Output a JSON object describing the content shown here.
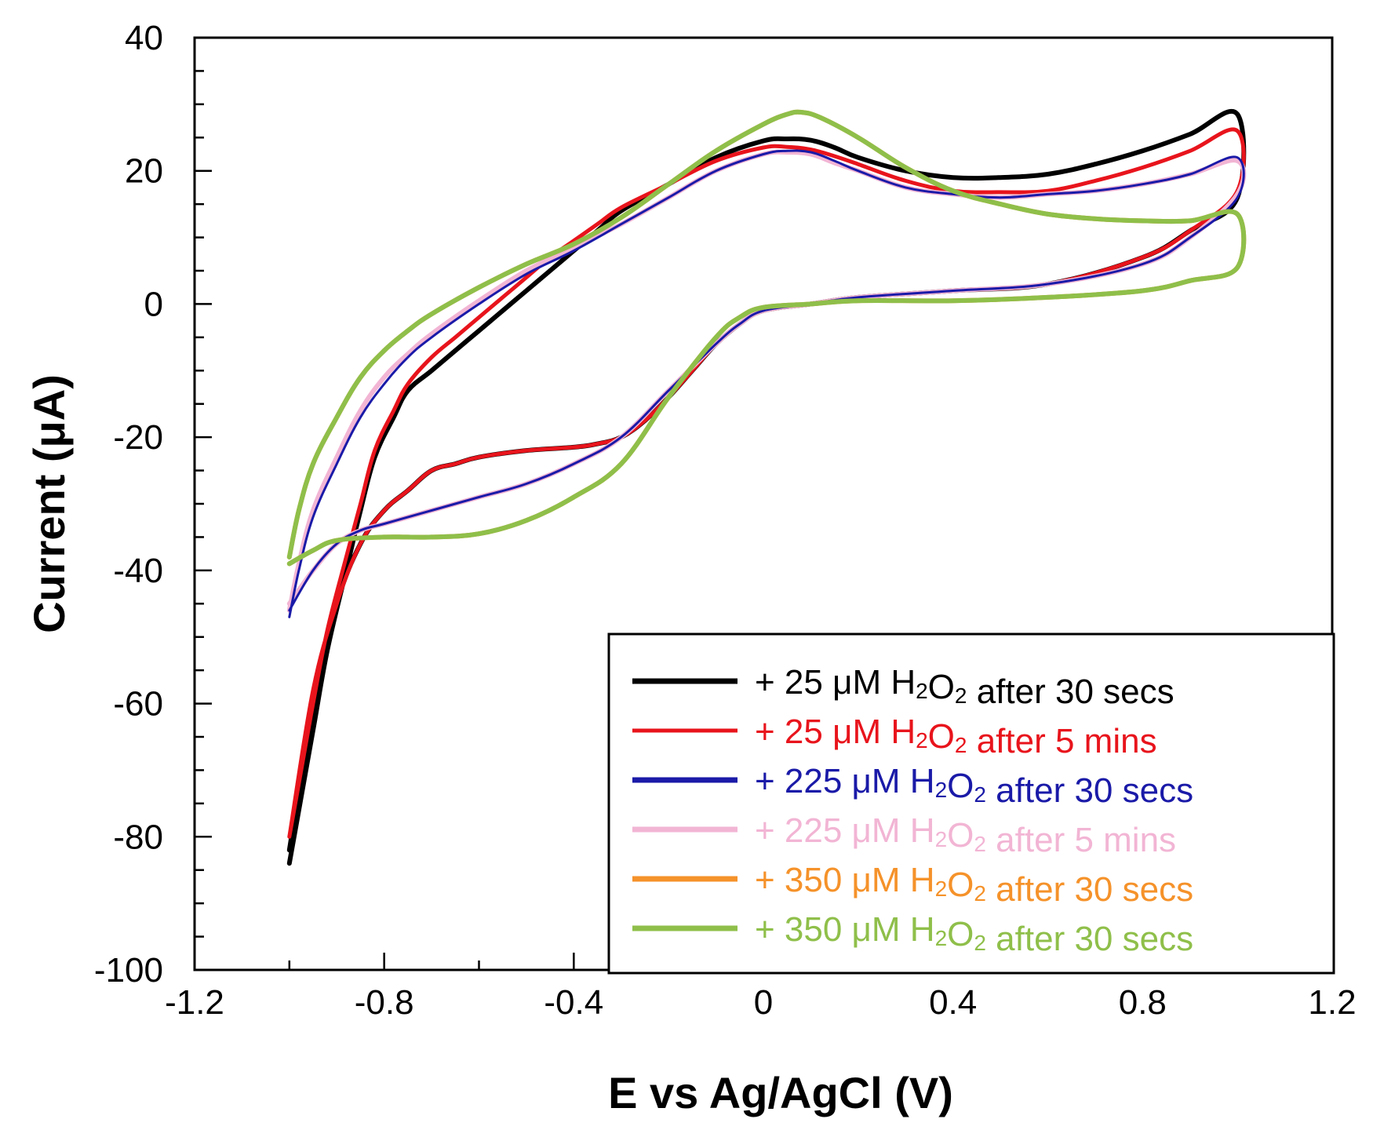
{
  "chart_data": {
    "type": "line",
    "title": "",
    "xlabel": "E vs Ag/AgCl (V)",
    "ylabel": "Current (μA)",
    "xlim": [
      -1.2,
      1.2
    ],
    "ylim": [
      -100,
      40
    ],
    "x_major_ticks": [
      -1.2,
      -0.8,
      -0.4,
      0,
      0.4,
      0.8,
      1.2
    ],
    "x_tick_labels": [
      "-1.2",
      "-0.8",
      "-0.4",
      "0",
      "0.4",
      "0.8",
      "1.2"
    ],
    "y_major_ticks": [
      -100,
      -80,
      -60,
      -40,
      -20,
      0,
      20,
      40
    ],
    "y_tick_labels": [
      "-100",
      "-80",
      "-60",
      "-40",
      "-20",
      "0",
      "20",
      "40"
    ],
    "grid": false,
    "legend_position": "bottom-right",
    "series": [
      {
        "name": "+ 25 μM H₂O₂ after 30 secs",
        "legend_parts": {
          "prefix": "+ 25 μM H",
          "sub1": "2",
          "mid": "O",
          "sub2": "2",
          "suffix": " after 30 secs"
        },
        "color": "#000000",
        "x": [
          -1.0,
          -0.98,
          -0.95,
          -0.92,
          -0.88,
          -0.85,
          -0.82,
          -0.78,
          -0.75,
          -0.7,
          -0.65,
          -0.6,
          -0.55,
          -0.5,
          -0.45,
          -0.4,
          -0.35,
          -0.3,
          -0.2,
          -0.1,
          0.0,
          0.05,
          0.1,
          0.15,
          0.2,
          0.3,
          0.4,
          0.5,
          0.6,
          0.7,
          0.8,
          0.9,
          1.0,
          1.0,
          0.9,
          0.8,
          0.6,
          0.4,
          0.2,
          0.1,
          0.0,
          -0.05,
          -0.1,
          -0.15,
          -0.2,
          -0.25,
          -0.3,
          -0.35,
          -0.4,
          -0.5,
          -0.6,
          -0.65,
          -0.7,
          -0.75,
          -0.8,
          -0.85,
          -0.9,
          -0.95,
          -1.0
        ],
        "y": [
          -84,
          -76,
          -64,
          -52,
          -40,
          -31,
          -23,
          -17,
          -13,
          -10,
          -7,
          -4,
          -1,
          2,
          5,
          8,
          11,
          14,
          18,
          22,
          24.5,
          24.8,
          24.6,
          23.5,
          22,
          20,
          19,
          19,
          19.5,
          21,
          23,
          25.5,
          28.5,
          16,
          11,
          7,
          3,
          2,
          1,
          0,
          -1,
          -3,
          -6,
          -10,
          -14,
          -17.5,
          -20,
          -21,
          -21.5,
          -22,
          -23,
          -24,
          -25,
          -28,
          -31,
          -36,
          -45,
          -60,
          -82
        ]
      },
      {
        "name": "+ 25 μM H₂O₂ after 5 mins",
        "legend_parts": {
          "prefix": "+ 25 μM H",
          "sub1": "2",
          "mid": "O",
          "sub2": "2",
          "suffix": " after 5 mins"
        },
        "color": "#e8141c",
        "x": [
          -1.0,
          -0.98,
          -0.95,
          -0.92,
          -0.88,
          -0.85,
          -0.82,
          -0.78,
          -0.75,
          -0.7,
          -0.65,
          -0.6,
          -0.55,
          -0.5,
          -0.45,
          -0.4,
          -0.35,
          -0.3,
          -0.2,
          -0.1,
          0.0,
          0.05,
          0.1,
          0.15,
          0.2,
          0.3,
          0.4,
          0.5,
          0.6,
          0.7,
          0.8,
          0.9,
          1.0,
          1.0,
          0.9,
          0.8,
          0.6,
          0.4,
          0.2,
          0.1,
          0.0,
          -0.05,
          -0.1,
          -0.15,
          -0.2,
          -0.25,
          -0.3,
          -0.35,
          -0.4,
          -0.5,
          -0.6,
          -0.65,
          -0.7,
          -0.75,
          -0.8,
          -0.85,
          -0.9,
          -0.95,
          -1.0
        ],
        "y": [
          -80,
          -72,
          -60,
          -49,
          -38,
          -30,
          -22,
          -16,
          -12,
          -8,
          -5,
          -2,
          1,
          4,
          7,
          9.5,
          12,
          14.5,
          18,
          21.5,
          23.5,
          23.6,
          23.2,
          22.2,
          21,
          18.5,
          17,
          16.8,
          17,
          18.5,
          20.5,
          23,
          26,
          17,
          11,
          7,
          3,
          2,
          1,
          0,
          -1,
          -3,
          -6,
          -10,
          -14,
          -17.5,
          -20,
          -21,
          -21.5,
          -22,
          -23,
          -24,
          -25,
          -28,
          -31,
          -36,
          -45,
          -58,
          -80
        ]
      },
      {
        "name": "+ 225 μM H₂O₂ after 30 secs",
        "legend_parts": {
          "prefix": "+ 225 μM H",
          "sub1": "2",
          "mid": "O",
          "sub2": "2",
          "suffix": " after 30 secs"
        },
        "color": "#1a1aa8",
        "x": [
          -1.0,
          -0.98,
          -0.95,
          -0.9,
          -0.85,
          -0.8,
          -0.75,
          -0.7,
          -0.6,
          -0.5,
          -0.4,
          -0.3,
          -0.2,
          -0.1,
          0.0,
          0.05,
          0.1,
          0.15,
          0.2,
          0.3,
          0.4,
          0.5,
          0.6,
          0.7,
          0.8,
          0.9,
          1.0,
          1.0,
          0.9,
          0.8,
          0.6,
          0.4,
          0.2,
          0.1,
          0.0,
          -0.05,
          -0.1,
          -0.2,
          -0.3,
          -0.4,
          -0.5,
          -0.6,
          -0.7,
          -0.8,
          -0.85,
          -0.9,
          -0.95,
          -1.0
        ],
        "y": [
          -47,
          -40,
          -32,
          -24,
          -17,
          -12,
          -8,
          -5,
          0,
          4.5,
          8,
          12,
          16,
          20,
          22.5,
          23,
          22.8,
          21.5,
          20,
          17.5,
          16.5,
          16,
          16.5,
          17,
          18,
          19.5,
          22,
          16,
          10,
          6,
          3,
          2,
          1,
          0,
          -1,
          -3,
          -6,
          -13,
          -20,
          -24,
          -27,
          -29,
          -31,
          -33,
          -34,
          -36,
          -40,
          -46
        ]
      },
      {
        "name": "+ 225 μM H₂O₂ after 5 mins",
        "legend_parts": {
          "prefix": "+ 225 μM H",
          "sub1": "2",
          "mid": "O",
          "sub2": "2",
          "suffix": " after 5 mins"
        },
        "color": "#f2b5d4",
        "x": [
          -1.0,
          -0.98,
          -0.95,
          -0.9,
          -0.85,
          -0.8,
          -0.75,
          -0.7,
          -0.6,
          -0.5,
          -0.4,
          -0.3,
          -0.2,
          -0.1,
          0.0,
          0.05,
          0.1,
          0.15,
          0.2,
          0.3,
          0.4,
          0.5,
          0.6,
          0.7,
          0.8,
          0.9,
          1.0,
          1.0,
          0.9,
          0.8,
          0.6,
          0.4,
          0.2,
          0.1,
          0.0,
          -0.05,
          -0.1,
          -0.2,
          -0.3,
          -0.4,
          -0.5,
          -0.6,
          -0.7,
          -0.8,
          -0.85,
          -0.9,
          -0.95,
          -1.0
        ],
        "y": [
          -46,
          -39,
          -31,
          -23,
          -16,
          -11,
          -7.5,
          -4.5,
          0.5,
          5,
          8.5,
          12,
          16,
          20,
          22.5,
          22.8,
          22.5,
          21.2,
          20,
          17.5,
          16.5,
          16,
          16.5,
          17,
          18,
          19.5,
          21.5,
          16.5,
          10,
          6,
          3,
          2,
          1,
          0,
          -1,
          -3,
          -6,
          -13,
          -20,
          -24,
          -27,
          -29,
          -31,
          -33,
          -34,
          -36,
          -40,
          -45
        ]
      },
      {
        "name": "+ 350 μM H₂O₂ after 30 secs",
        "legend_parts": {
          "prefix": "+ 350 μM H",
          "sub1": "2",
          "mid": "O",
          "sub2": "2",
          "suffix": " after 30 secs"
        },
        "color": "#f5922a",
        "x": [
          -1.0,
          -0.98,
          -0.95,
          -0.9,
          -0.85,
          -0.8,
          -0.75,
          -0.7,
          -0.6,
          -0.5,
          -0.4,
          -0.3,
          -0.2,
          -0.1,
          0.0,
          0.05,
          0.08,
          0.12,
          0.2,
          0.3,
          0.4,
          0.5,
          0.6,
          0.7,
          0.8,
          0.9,
          1.0,
          1.0,
          0.9,
          0.8,
          0.6,
          0.4,
          0.2,
          0.1,
          0.0,
          -0.05,
          -0.1,
          -0.2,
          -0.3,
          -0.4,
          -0.5,
          -0.6,
          -0.7,
          -0.8,
          -0.9,
          -0.95,
          -1.0
        ],
        "y": [
          -38,
          -31,
          -24,
          -17,
          -11,
          -7,
          -4,
          -1.5,
          2.5,
          6,
          9,
          13,
          18,
          23,
          27,
          28.5,
          28.8,
          28,
          25,
          20.5,
          17,
          15,
          13.5,
          12.8,
          12.5,
          12.5,
          13.5,
          5.5,
          3.5,
          2,
          1,
          0.5,
          0.5,
          0,
          -0.5,
          -2,
          -5,
          -14,
          -24,
          -29,
          -32.5,
          -34.5,
          -35,
          -35,
          -35.5,
          -37,
          -39
        ]
      },
      {
        "name": "+ 350 μM H₂O₂ after 30 secs",
        "legend_parts": {
          "prefix": "+ 350 μM H",
          "sub1": "2",
          "mid": "O",
          "sub2": "2",
          "suffix": " after 30 secs"
        },
        "color": "#8fbf4a",
        "x": [
          -1.0,
          -0.98,
          -0.95,
          -0.9,
          -0.85,
          -0.8,
          -0.75,
          -0.7,
          -0.6,
          -0.5,
          -0.4,
          -0.3,
          -0.2,
          -0.1,
          0.0,
          0.05,
          0.08,
          0.12,
          0.2,
          0.3,
          0.4,
          0.5,
          0.6,
          0.7,
          0.8,
          0.9,
          1.0,
          1.0,
          0.9,
          0.8,
          0.6,
          0.4,
          0.2,
          0.1,
          0.0,
          -0.05,
          -0.1,
          -0.2,
          -0.3,
          -0.4,
          -0.5,
          -0.6,
          -0.7,
          -0.8,
          -0.9,
          -0.95,
          -1.0
        ],
        "y": [
          -38,
          -31,
          -24,
          -17,
          -11,
          -7,
          -4,
          -1.5,
          2.5,
          6,
          9,
          13,
          18,
          23,
          27,
          28.5,
          28.8,
          28,
          25,
          20.5,
          17,
          15,
          13.5,
          12.8,
          12.5,
          12.5,
          13.5,
          5.5,
          3.5,
          2,
          1,
          0.5,
          0.5,
          0,
          -0.5,
          -2,
          -5,
          -14,
          -24,
          -29,
          -32.5,
          -34.5,
          -35,
          -35,
          -35.5,
          -37,
          -39
        ]
      }
    ]
  }
}
